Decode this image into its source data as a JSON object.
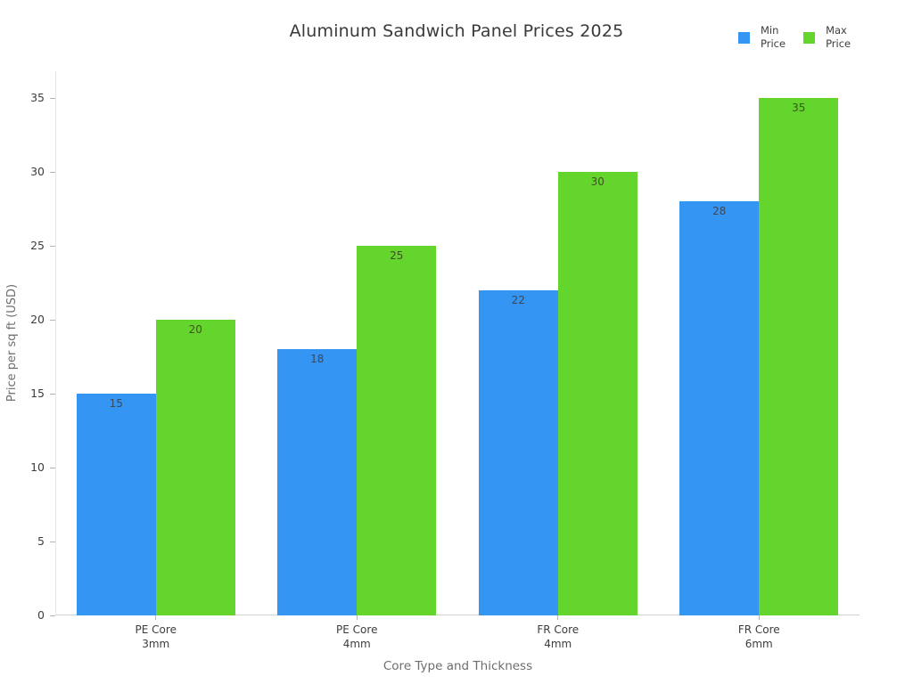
{
  "title": "Aluminum Sandwich Panel Prices 2025",
  "axes": {
    "y_title": "Price per sq ft (USD)",
    "x_title": "Core Type and Thickness"
  },
  "legend": {
    "position": "top-right"
  },
  "chart_data": {
    "type": "bar",
    "title": "Aluminum Sandwich Panel Prices 2025",
    "xlabel": "Core Type and Thickness",
    "ylabel": "Price per sq ft (USD)",
    "categories": [
      "PE Core\n3mm",
      "PE Core\n4mm",
      "FR Core\n4mm",
      "FR Core\n6mm"
    ],
    "series": [
      {
        "name": "Min Price",
        "legend_label": "Min\nPrice",
        "color": "#3595f2",
        "label_color": "#3c4858",
        "values": [
          15,
          18,
          22,
          28
        ]
      },
      {
        "name": "Max Price",
        "legend_label": "Max\nPrice",
        "color": "#63d52c",
        "label_color": "#40531f",
        "values": [
          20,
          25,
          30,
          35
        ]
      }
    ],
    "ylim": [
      0,
      35
    ],
    "yticks": [
      0,
      5,
      10,
      15,
      20,
      25,
      30,
      35
    ],
    "grid": false,
    "bar_labels": true,
    "legend_position": "top-right"
  }
}
